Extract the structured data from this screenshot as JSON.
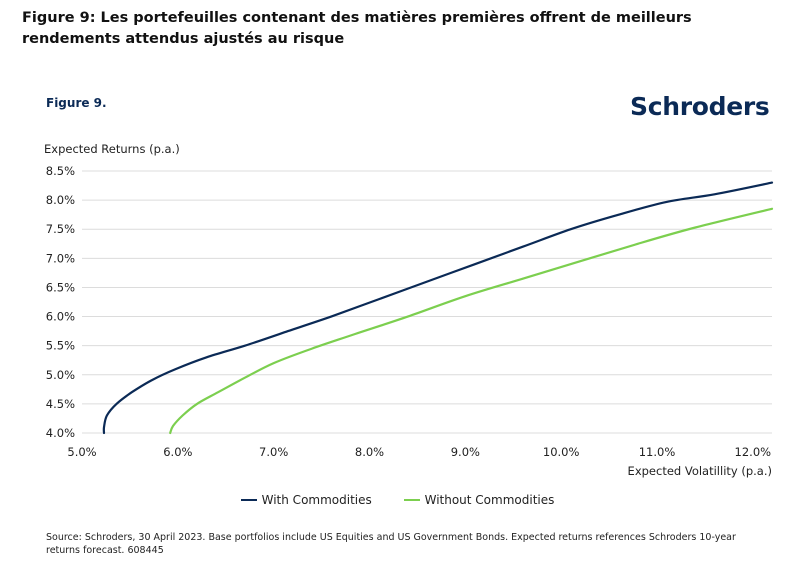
{
  "page_title": "Figure 9: Les portefeuilles contenant des matières premières offrent de meilleurs rendements attendus ajustés au risque",
  "figure_label": "Figure 9.",
  "brand": "Schroders",
  "source": "Source: Schroders, 30 April 2023. Base portfolios include US Equities and US Government Bonds. Expected returns references Schroders 10-year returns forecast. 608445",
  "colors": {
    "with_commodities": "#0b2a56",
    "without_commodities": "#7ccf4f",
    "grid": "#dcdcdc",
    "brand": "#0b2a56"
  },
  "chart_data": {
    "type": "line",
    "title": "",
    "xlabel": "Expected Volatillity (p.a.)",
    "ylabel": "Expected Returns (p.a.)",
    "xlim": [
      5.0,
      12.2
    ],
    "ylim": [
      4.0,
      8.5
    ],
    "x_ticks": [
      "5.0%",
      "6.0%",
      "7.0%",
      "8.0%",
      "9.0%",
      "10.0%",
      "11.0%",
      "12.0%"
    ],
    "x_tick_values": [
      5.0,
      6.0,
      7.0,
      8.0,
      9.0,
      10.0,
      11.0,
      12.0
    ],
    "y_ticks": [
      "4.0%",
      "4.5%",
      "5.0%",
      "5.5%",
      "6.0%",
      "6.5%",
      "7.0%",
      "7.5%",
      "8.0%",
      "8.5%"
    ],
    "y_tick_values": [
      4.0,
      4.5,
      5.0,
      5.5,
      6.0,
      6.5,
      7.0,
      7.5,
      8.0,
      8.5
    ],
    "grid": true,
    "legend_position": "bottom",
    "series": [
      {
        "name": "With Commodities",
        "color_key": "with_commodities",
        "points": [
          [
            5.23,
            4.0
          ],
          [
            5.23,
            4.1
          ],
          [
            5.26,
            4.3
          ],
          [
            5.36,
            4.5
          ],
          [
            5.52,
            4.7
          ],
          [
            5.72,
            4.9
          ],
          [
            5.98,
            5.1
          ],
          [
            6.3,
            5.3
          ],
          [
            6.7,
            5.5
          ],
          [
            7.15,
            5.75
          ],
          [
            7.6,
            6.0
          ],
          [
            8.1,
            6.3
          ],
          [
            8.6,
            6.6
          ],
          [
            9.1,
            6.9
          ],
          [
            9.6,
            7.2
          ],
          [
            10.1,
            7.5
          ],
          [
            10.6,
            7.75
          ],
          [
            11.1,
            7.97
          ],
          [
            11.6,
            8.1
          ],
          [
            12.2,
            8.3
          ]
        ]
      },
      {
        "name": "Without Commodities",
        "color_key": "without_commodities",
        "points": [
          [
            5.92,
            4.0
          ],
          [
            5.95,
            4.12
          ],
          [
            6.05,
            4.3
          ],
          [
            6.2,
            4.5
          ],
          [
            6.42,
            4.7
          ],
          [
            6.7,
            4.95
          ],
          [
            7.0,
            5.2
          ],
          [
            7.4,
            5.45
          ],
          [
            7.85,
            5.7
          ],
          [
            8.4,
            6.0
          ],
          [
            9.0,
            6.35
          ],
          [
            9.6,
            6.65
          ],
          [
            10.2,
            6.95
          ],
          [
            10.8,
            7.25
          ],
          [
            11.4,
            7.53
          ],
          [
            12.2,
            7.85
          ]
        ]
      }
    ]
  }
}
